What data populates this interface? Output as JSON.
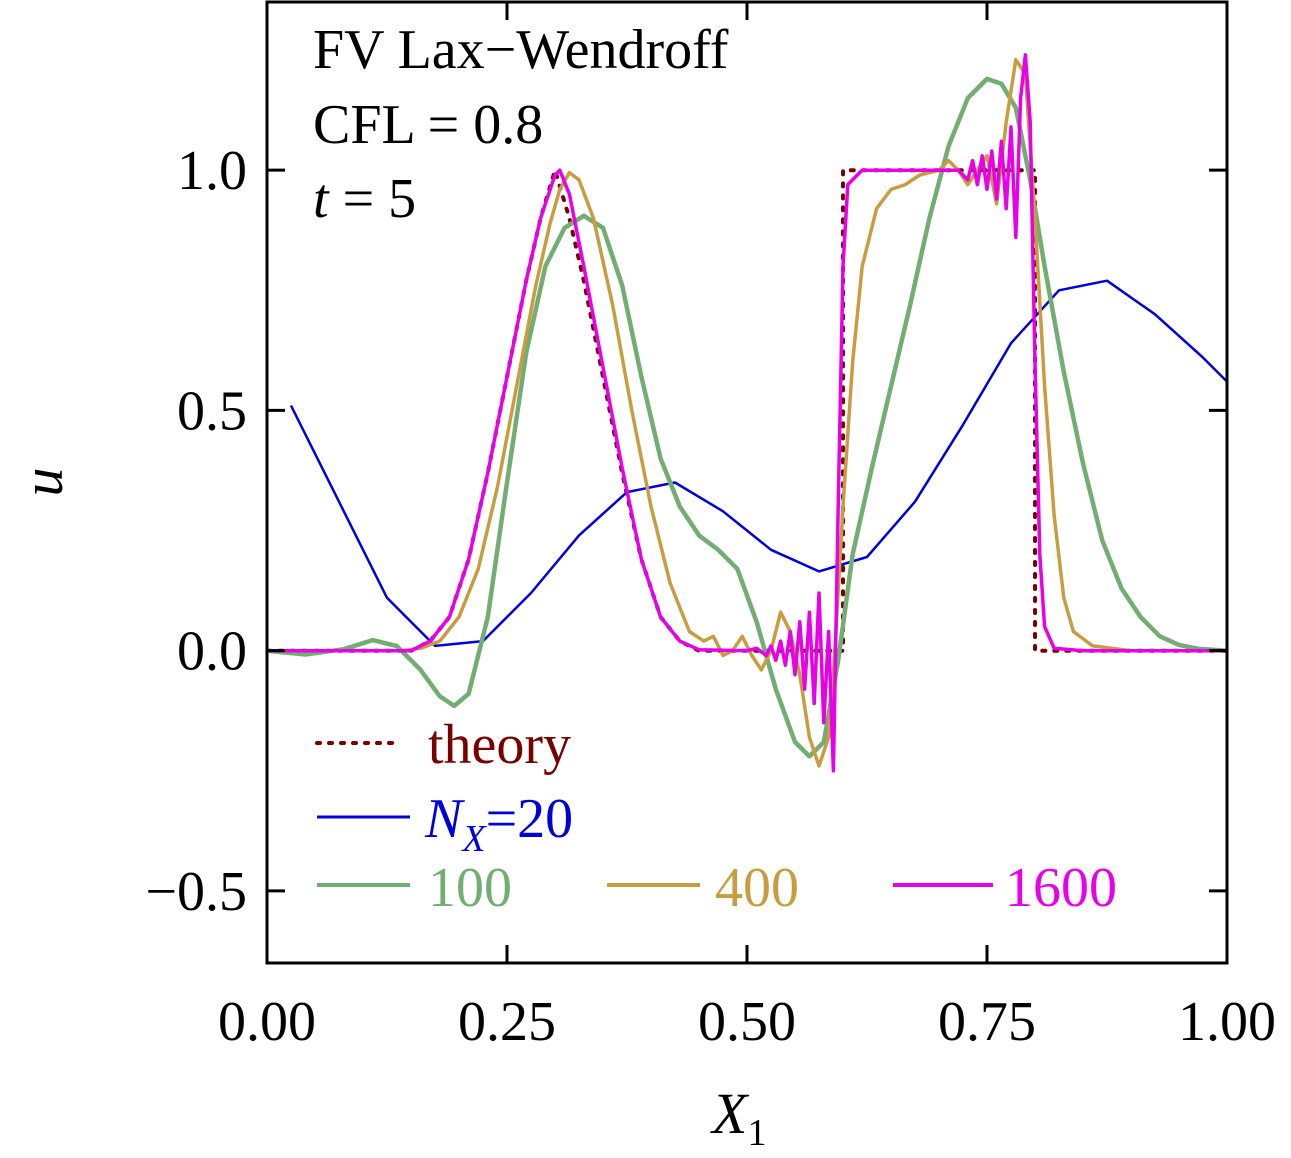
{
  "chart_data": {
    "type": "line",
    "title": "",
    "annotations": [
      "FV Lax−Wendroff",
      "CFL = 0.8",
      "= 5"
    ],
    "annotation_t_symbol": "t",
    "xlabel": "X",
    "xlabel_sub": "1",
    "ylabel": "u",
    "xlim": [
      0,
      1
    ],
    "ylim": [
      -0.65,
      1.35
    ],
    "xticks": [
      0,
      0.25,
      0.5,
      0.75,
      1.0
    ],
    "xtick_labels": [
      "0.00",
      "0.25",
      "0.50",
      "0.75",
      "1.00"
    ],
    "yticks": [
      -0.5,
      0,
      0.5,
      1.0
    ],
    "ytick_labels": [
      "−0.5",
      "0.0",
      "0.5",
      "1.0"
    ],
    "grid": false,
    "legend_position": "bottom-left",
    "legend": {
      "theory": "theory",
      "n_symbol": "N",
      "n_sub": "X",
      "n_eq": "=",
      "n20": "20",
      "n100": "100",
      "n400": "400",
      "n1600": "1600"
    },
    "series": [
      {
        "name": "theory",
        "color": "#7a0000",
        "style": "dotted",
        "points": [
          [
            0,
            0
          ],
          [
            0.15,
            0
          ],
          [
            0.17,
            0.02
          ],
          [
            0.19,
            0.07
          ],
          [
            0.21,
            0.19
          ],
          [
            0.23,
            0.37
          ],
          [
            0.25,
            0.57
          ],
          [
            0.27,
            0.77
          ],
          [
            0.285,
            0.9
          ],
          [
            0.3,
            1.0
          ],
          [
            0.315,
            0.9
          ],
          [
            0.33,
            0.77
          ],
          [
            0.35,
            0.57
          ],
          [
            0.37,
            0.37
          ],
          [
            0.39,
            0.19
          ],
          [
            0.41,
            0.07
          ],
          [
            0.43,
            0.02
          ],
          [
            0.45,
            0
          ],
          [
            0.6,
            0
          ],
          [
            0.6,
            1.0
          ],
          [
            0.8,
            1.0
          ],
          [
            0.8,
            0
          ],
          [
            1.0,
            0
          ]
        ]
      },
      {
        "name": "20",
        "color": "#0000dd",
        "style": "solid",
        "points": [
          [
            0.025,
            0.51
          ],
          [
            0.075,
            0.31
          ],
          [
            0.125,
            0.11
          ],
          [
            0.175,
            0.01
          ],
          [
            0.225,
            0.02
          ],
          [
            0.275,
            0.12
          ],
          [
            0.325,
            0.24
          ],
          [
            0.375,
            0.33
          ],
          [
            0.425,
            0.35
          ],
          [
            0.475,
            0.29
          ],
          [
            0.525,
            0.21
          ],
          [
            0.575,
            0.165
          ],
          [
            0.625,
            0.195
          ],
          [
            0.675,
            0.31
          ],
          [
            0.725,
            0.47
          ],
          [
            0.775,
            0.64
          ],
          [
            0.825,
            0.75
          ],
          [
            0.875,
            0.77
          ],
          [
            0.925,
            0.7
          ],
          [
            0.975,
            0.61
          ],
          [
            1.0,
            0.56
          ]
        ]
      },
      {
        "name": "100",
        "color": "#72ad72",
        "style": "solid",
        "points": [
          [
            0,
            0
          ],
          [
            0.04,
            -0.008
          ],
          [
            0.08,
            0.003
          ],
          [
            0.11,
            0.022
          ],
          [
            0.135,
            0.01
          ],
          [
            0.16,
            -0.04
          ],
          [
            0.18,
            -0.095
          ],
          [
            0.195,
            -0.115
          ],
          [
            0.21,
            -0.09
          ],
          [
            0.23,
            0.07
          ],
          [
            0.25,
            0.35
          ],
          [
            0.27,
            0.62
          ],
          [
            0.29,
            0.8
          ],
          [
            0.31,
            0.88
          ],
          [
            0.33,
            0.905
          ],
          [
            0.35,
            0.88
          ],
          [
            0.37,
            0.76
          ],
          [
            0.39,
            0.57
          ],
          [
            0.41,
            0.4
          ],
          [
            0.43,
            0.3
          ],
          [
            0.45,
            0.24
          ],
          [
            0.47,
            0.21
          ],
          [
            0.49,
            0.17
          ],
          [
            0.51,
            0.06
          ],
          [
            0.53,
            -0.08
          ],
          [
            0.55,
            -0.19
          ],
          [
            0.565,
            -0.22
          ],
          [
            0.58,
            -0.19
          ],
          [
            0.595,
            -0.02
          ],
          [
            0.61,
            0.2
          ],
          [
            0.63,
            0.38
          ],
          [
            0.65,
            0.55
          ],
          [
            0.67,
            0.72
          ],
          [
            0.69,
            0.9
          ],
          [
            0.71,
            1.05
          ],
          [
            0.73,
            1.15
          ],
          [
            0.75,
            1.19
          ],
          [
            0.765,
            1.18
          ],
          [
            0.78,
            1.13
          ],
          [
            0.795,
            0.98
          ],
          [
            0.81,
            0.8
          ],
          [
            0.83,
            0.58
          ],
          [
            0.85,
            0.39
          ],
          [
            0.87,
            0.23
          ],
          [
            0.89,
            0.13
          ],
          [
            0.91,
            0.07
          ],
          [
            0.93,
            0.03
          ],
          [
            0.95,
            0.012
          ],
          [
            0.97,
            0.004
          ],
          [
            1.0,
            0
          ]
        ]
      },
      {
        "name": "400",
        "color": "#c89d40",
        "style": "solid",
        "points": [
          [
            0,
            0
          ],
          [
            0.14,
            0
          ],
          [
            0.16,
            0.005
          ],
          [
            0.18,
            0.02
          ],
          [
            0.2,
            0.07
          ],
          [
            0.22,
            0.17
          ],
          [
            0.24,
            0.34
          ],
          [
            0.26,
            0.55
          ],
          [
            0.28,
            0.76
          ],
          [
            0.295,
            0.89
          ],
          [
            0.305,
            0.96
          ],
          [
            0.315,
            0.995
          ],
          [
            0.325,
            0.98
          ],
          [
            0.34,
            0.9
          ],
          [
            0.36,
            0.72
          ],
          [
            0.38,
            0.5
          ],
          [
            0.4,
            0.3
          ],
          [
            0.42,
            0.14
          ],
          [
            0.44,
            0.04
          ],
          [
            0.455,
            0.02
          ],
          [
            0.465,
            0.03
          ],
          [
            0.475,
            -0.01
          ],
          [
            0.485,
            0.0
          ],
          [
            0.495,
            0.03
          ],
          [
            0.505,
            -0.01
          ],
          [
            0.515,
            -0.04
          ],
          [
            0.525,
            0.0
          ],
          [
            0.535,
            0.08
          ],
          [
            0.545,
            0.04
          ],
          [
            0.555,
            -0.05
          ],
          [
            0.565,
            -0.18
          ],
          [
            0.575,
            -0.24
          ],
          [
            0.585,
            -0.18
          ],
          [
            0.59,
            -0.05
          ],
          [
            0.6,
            0.3
          ],
          [
            0.61,
            0.6
          ],
          [
            0.62,
            0.8
          ],
          [
            0.635,
            0.92
          ],
          [
            0.65,
            0.96
          ],
          [
            0.665,
            0.97
          ],
          [
            0.68,
            0.99
          ],
          [
            0.7,
            1.0
          ],
          [
            0.71,
            1.02
          ],
          [
            0.72,
            1.0
          ],
          [
            0.73,
            0.97
          ],
          [
            0.74,
            1.0
          ],
          [
            0.75,
            1.03
          ],
          [
            0.76,
            0.93
          ],
          [
            0.77,
            1.1
          ],
          [
            0.78,
            1.23
          ],
          [
            0.79,
            1.2
          ],
          [
            0.8,
            0.9
          ],
          [
            0.81,
            0.55
          ],
          [
            0.82,
            0.28
          ],
          [
            0.83,
            0.11
          ],
          [
            0.84,
            0.04
          ],
          [
            0.86,
            0.01
          ],
          [
            0.9,
            0
          ],
          [
            1.0,
            0
          ]
        ]
      },
      {
        "name": "1600",
        "color": "#e800e8",
        "style": "solid",
        "points": [
          [
            0,
            0
          ],
          [
            0.15,
            0
          ],
          [
            0.17,
            0.02
          ],
          [
            0.19,
            0.07
          ],
          [
            0.21,
            0.19
          ],
          [
            0.23,
            0.37
          ],
          [
            0.25,
            0.57
          ],
          [
            0.27,
            0.77
          ],
          [
            0.285,
            0.9
          ],
          [
            0.3,
            0.99
          ],
          [
            0.305,
            1.0
          ],
          [
            0.315,
            0.95
          ],
          [
            0.33,
            0.8
          ],
          [
            0.35,
            0.59
          ],
          [
            0.37,
            0.38
          ],
          [
            0.39,
            0.19
          ],
          [
            0.41,
            0.07
          ],
          [
            0.43,
            0.02
          ],
          [
            0.45,
            0.002
          ],
          [
            0.5,
            0
          ],
          [
            0.51,
            0.005
          ],
          [
            0.52,
            -0.01
          ],
          [
            0.525,
            0.01
          ],
          [
            0.53,
            -0.02
          ],
          [
            0.535,
            0.02
          ],
          [
            0.54,
            -0.03
          ],
          [
            0.545,
            0.04
          ],
          [
            0.55,
            -0.05
          ],
          [
            0.555,
            0.06
          ],
          [
            0.56,
            -0.08
          ],
          [
            0.565,
            0.08
          ],
          [
            0.57,
            -0.11
          ],
          [
            0.575,
            0.12
          ],
          [
            0.58,
            -0.15
          ],
          [
            0.585,
            0.04
          ],
          [
            0.59,
            -0.25
          ],
          [
            0.595,
            0.3
          ],
          [
            0.6,
            0.8
          ],
          [
            0.605,
            0.97
          ],
          [
            0.62,
            1.0
          ],
          [
            0.7,
            1.0
          ],
          [
            0.72,
            1.0
          ],
          [
            0.73,
            0.98
          ],
          [
            0.735,
            1.02
          ],
          [
            0.74,
            0.97
          ],
          [
            0.745,
            1.03
          ],
          [
            0.75,
            0.96
          ],
          [
            0.755,
            1.04
          ],
          [
            0.76,
            0.94
          ],
          [
            0.765,
            1.06
          ],
          [
            0.77,
            0.92
          ],
          [
            0.775,
            1.09
          ],
          [
            0.78,
            0.86
          ],
          [
            0.785,
            1.15
          ],
          [
            0.79,
            1.24
          ],
          [
            0.795,
            1.1
          ],
          [
            0.8,
            0.6
          ],
          [
            0.805,
            0.2
          ],
          [
            0.81,
            0.05
          ],
          [
            0.82,
            0.005
          ],
          [
            0.85,
            0
          ],
          [
            1.0,
            0
          ]
        ]
      }
    ]
  }
}
